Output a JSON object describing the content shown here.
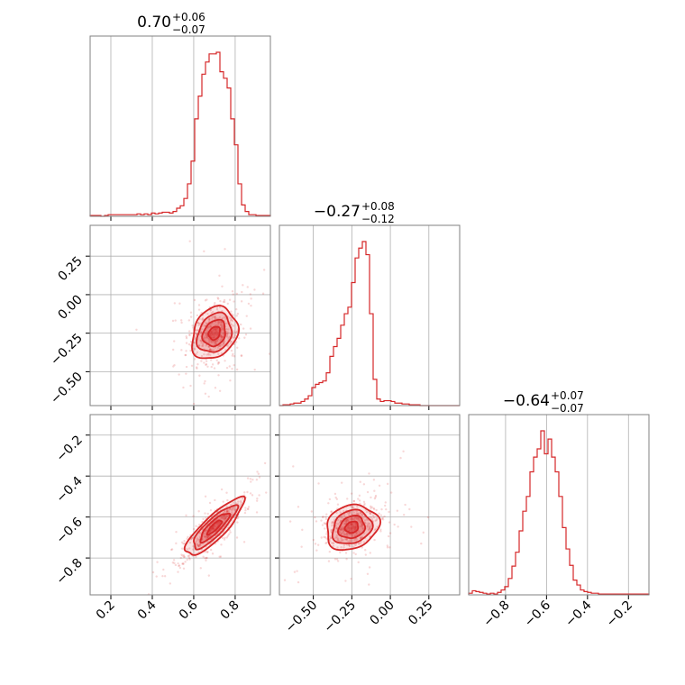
{
  "chart_data": {
    "type": "corner",
    "color": "#d62728",
    "grid": true,
    "parameters": [
      {
        "title_median": "0.70",
        "title_plus": "+0.06",
        "title_minus": "−0.07",
        "median": 0.7,
        "range": [
          0.1,
          0.97
        ],
        "ticks": [
          0.2,
          0.4,
          0.6,
          0.8
        ],
        "tick_labels": [
          "0.2",
          "0.4",
          "0.6",
          "0.8"
        ],
        "histogram": {
          "edges_start": 0.1,
          "bin_width": 0.0174,
          "counts": [
            1,
            1,
            1,
            0,
            1,
            2,
            2,
            2,
            2,
            2,
            2,
            2,
            2,
            3,
            2,
            3,
            2,
            4,
            3,
            4,
            5,
            5,
            4,
            6,
            10,
            13,
            22,
            40,
            68,
            120,
            148,
            175,
            190,
            200,
            200,
            202,
            178,
            170,
            158,
            120,
            88,
            40,
            14,
            6,
            2,
            2,
            1,
            1,
            1,
            1
          ]
        }
      },
      {
        "title_median": "−0.27",
        "title_plus": "+0.08",
        "title_minus": "−0.12",
        "median": -0.27,
        "range": [
          -0.72,
          0.45
        ],
        "ticks": [
          -0.5,
          -0.25,
          0.0,
          0.25
        ],
        "tick_labels": [
          "−0.50",
          "−0.25",
          "0.00",
          "0.25"
        ],
        "histogram": {
          "edges_start": -0.72,
          "bin_width": 0.0234,
          "counts": [
            0,
            1,
            1,
            2,
            3,
            3,
            5,
            8,
            12,
            22,
            26,
            28,
            30,
            40,
            60,
            72,
            82,
            98,
            112,
            120,
            150,
            180,
            192,
            200,
            184,
            112,
            32,
            8,
            5,
            6,
            6,
            5,
            3,
            3,
            2,
            2,
            1,
            1,
            1,
            0,
            0,
            0,
            0,
            0,
            0,
            0,
            0,
            0,
            0,
            0
          ]
        }
      },
      {
        "title_median": "−0.64",
        "title_plus": "+0.07",
        "title_minus": "−0.07",
        "median": -0.64,
        "range": [
          -0.98,
          -0.1
        ],
        "ticks": [
          -0.8,
          -0.6,
          -0.4,
          -0.2
        ],
        "tick_labels": [
          "−0.8",
          "−0.6",
          "−0.4",
          "−0.2"
        ],
        "histogram": {
          "edges_start": -0.98,
          "bin_width": 0.0176,
          "counts": [
            2,
            5,
            4,
            3,
            2,
            1,
            2,
            1,
            3,
            6,
            10,
            20,
            35,
            52,
            78,
            102,
            120,
            150,
            168,
            178,
            200,
            172,
            190,
            168,
            150,
            120,
            82,
            56,
            36,
            18,
            12,
            6,
            4,
            3,
            2,
            2,
            1,
            1,
            1,
            1,
            1,
            1,
            1,
            1,
            1,
            1,
            1,
            1,
            1,
            1
          ]
        }
      }
    ],
    "pairs": [
      {
        "x_param": 0,
        "y_param": 1,
        "mean": [
          0.7,
          -0.25
        ],
        "sd": [
          0.055,
          0.085
        ],
        "corr": 0.22,
        "contour_levels": [
          0.5,
          1.0,
          1.5,
          2.0
        ]
      },
      {
        "x_param": 0,
        "y_param": 2,
        "mean": [
          0.7,
          -0.65
        ],
        "sd": [
          0.07,
          0.07
        ],
        "corr": 0.85,
        "contour_levels": [
          0.5,
          1.0,
          1.5,
          2.0
        ]
      },
      {
        "x_param": 1,
        "y_param": 2,
        "mean": [
          -0.25,
          -0.65
        ],
        "sd": [
          0.085,
          0.055
        ],
        "corr": 0.18,
        "contour_levels": [
          0.5,
          1.0,
          1.5,
          2.0
        ]
      }
    ]
  }
}
